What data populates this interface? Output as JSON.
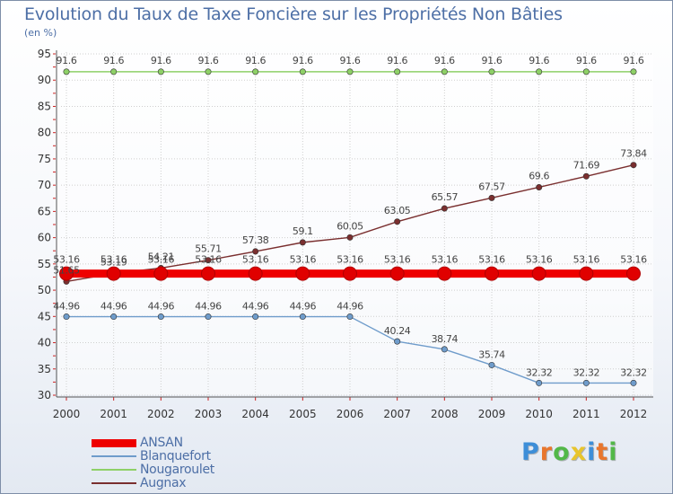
{
  "chart_data": {
    "type": "line",
    "title": "Evolution du Taux de Taxe Foncière sur les Propriétés Non Bâties",
    "ylabel": "(en %)",
    "xlabel": "",
    "ylim": [
      30,
      95
    ],
    "yticks": [
      30,
      35,
      40,
      45,
      50,
      55,
      60,
      65,
      70,
      75,
      80,
      85,
      90,
      95
    ],
    "categories": [
      "2000",
      "2001",
      "2002",
      "2003",
      "2004",
      "2005",
      "2006",
      "2007",
      "2008",
      "2009",
      "2010",
      "2011",
      "2012"
    ],
    "series": [
      {
        "name": "ANSAN",
        "color": "#ee0000",
        "values": [
          53.16,
          53.16,
          53.16,
          53.16,
          53.16,
          53.16,
          53.16,
          53.16,
          53.16,
          53.16,
          53.16,
          53.16,
          53.16
        ],
        "labels": [
          "53.16",
          "53.16",
          "53.16",
          "53.16",
          "53.16",
          "53.16",
          "53.16",
          "53.16",
          "53.16",
          "53.16",
          "53.16",
          "53.16",
          "53.16"
        ]
      },
      {
        "name": "Blanquefort",
        "color": "#6f9ccb",
        "values": [
          44.96,
          44.96,
          44.96,
          44.96,
          44.96,
          44.96,
          44.96,
          40.24,
          38.74,
          35.74,
          32.32,
          32.32,
          32.32
        ],
        "labels": [
          "44.96",
          "44.96",
          "44.96",
          "44.96",
          "44.96",
          "44.96",
          "44.96",
          "40.24",
          "38.74",
          "35.74",
          "32.32",
          "32.32",
          "32.32"
        ]
      },
      {
        "name": "Nougaroulet",
        "color": "#8ed067",
        "values": [
          91.6,
          91.6,
          91.6,
          91.6,
          91.6,
          91.6,
          91.6,
          91.6,
          91.6,
          91.6,
          91.6,
          91.6,
          91.6
        ],
        "labels": [
          "91.6",
          "91.6",
          "91.6",
          "91.6",
          "91.6",
          "91.6",
          "91.6",
          "91.6",
          "91.6",
          "91.6",
          "91.6",
          "91.6",
          "91.6"
        ]
      },
      {
        "name": "Augnax",
        "color": "#7a2f2f",
        "values": [
          51.65,
          53.19,
          54.21,
          55.71,
          57.38,
          59.1,
          60.05,
          63.05,
          65.57,
          67.57,
          69.6,
          71.69,
          73.84
        ],
        "labels": [
          "51.65",
          "53.19",
          "54.21",
          "55.71",
          "57.38",
          "59.1",
          "60.05",
          "63.05",
          "65.57",
          "67.57",
          "69.6",
          "71.69",
          "73.84"
        ]
      }
    ]
  },
  "logo": {
    "letters": [
      "P",
      "r",
      "o",
      "x",
      "i",
      "t",
      "i"
    ],
    "colors": [
      "#3d8ed8",
      "#e8762d",
      "#52b848",
      "#e8c52d",
      "#3d8ed8",
      "#e8762d",
      "#52b848"
    ]
  }
}
